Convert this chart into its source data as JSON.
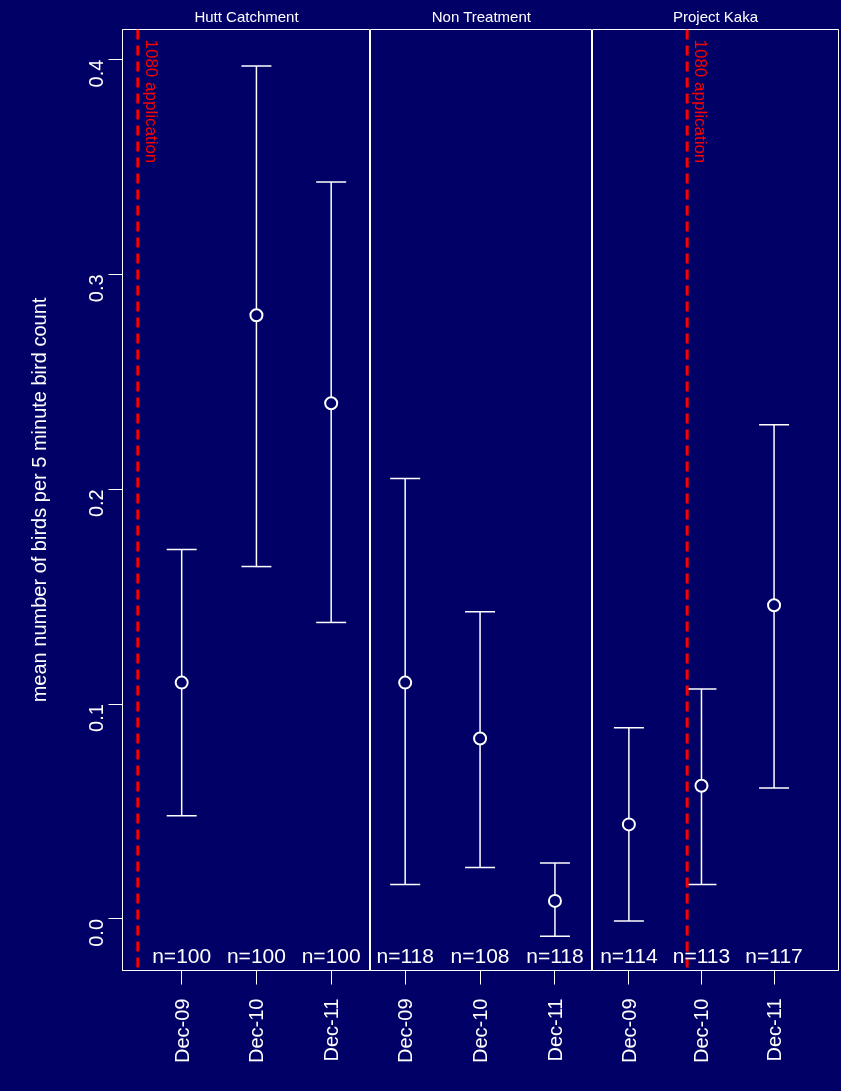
{
  "chart_data": [
    {
      "type": "scatter",
      "title": "Hutt Catchment",
      "ylabel": "mean number of birds per 5 minute bird count",
      "color": "#ffffff",
      "marker": "circle",
      "x": [
        "2009-12",
        "2010-12",
        "2011-12"
      ],
      "values": [
        0.11,
        0.281,
        0.24
      ],
      "errors": [
        [
          0.048,
          0.172
        ],
        [
          0.164,
          0.397
        ],
        [
          0.138,
          0.343
        ]
      ],
      "xlim": [
        "2009-02-15",
        "2012-06-10"
      ],
      "xticks": [
        {
          "value": "2009-12",
          "label": "Dec-09"
        },
        {
          "value": "2010-12",
          "label": "Dec-10"
        },
        {
          "value": "2011-12",
          "label": "Dec-11"
        }
      ],
      "ylim": [
        -0.024,
        0.414
      ],
      "yticks": [
        {
          "value": 0,
          "label": "0.0"
        },
        0.1,
        0.2,
        0.3,
        0.4
      ],
      "ref_lines": [
        {
          "axis": "x",
          "value": "2009-05-01",
          "label": "1080 application",
          "color": "#ff0000",
          "line_style": "dashed"
        }
      ],
      "annotations": [
        "n=100",
        "n=100",
        "n=100"
      ]
    },
    {
      "type": "scatter",
      "title": "Non Treatment",
      "color": "#ffffff",
      "marker": "circle",
      "tick_labels": "x",
      "x": [
        "2009-12",
        "2010-12",
        "2011-12"
      ],
      "values": [
        0.11,
        0.084,
        0.0084
      ],
      "errors": [
        [
          0.016,
          0.205
        ],
        [
          0.024,
          0.143
        ],
        [
          -0.008,
          0.026
        ]
      ],
      "xlim": [
        "2009-06-15",
        "2012-06-01"
      ],
      "xticks": [
        {
          "value": "2009-12",
          "label": "Dec-09"
        },
        {
          "value": "2010-12",
          "label": "Dec-10"
        },
        {
          "value": "2011-12",
          "label": "Dec-11"
        }
      ],
      "ylim": [
        -0.024,
        0.414
      ],
      "annotations": [
        "n=118",
        "n=108",
        "n=118"
      ]
    },
    {
      "type": "scatter",
      "title": "Project Kaka",
      "color": "#ffffff",
      "marker": "circle",
      "tick_labels": "x",
      "x": [
        "2009-12",
        "2010-12",
        "2011-12"
      ],
      "values": [
        0.044,
        0.062,
        0.146
      ],
      "errors": [
        [
          -0.001,
          0.089
        ],
        [
          0.016,
          0.107
        ],
        [
          0.061,
          0.23
        ]
      ],
      "xlim": [
        "2009-06-01",
        "2012-10-20"
      ],
      "xticks": [
        {
          "value": "2009-12",
          "label": "Dec-09"
        },
        {
          "value": "2010-12",
          "label": "Dec-10"
        },
        {
          "value": "2011-12",
          "label": "Dec-11"
        }
      ],
      "ylim": [
        -0.024,
        0.414
      ],
      "ref_lines": [
        {
          "axis": "x",
          "value": "2010-09-20",
          "label": "1080 application",
          "color": "#ff0000",
          "line_style": "dashed"
        }
      ],
      "annotations": [
        "n=114",
        "n=113",
        "n=117"
      ]
    }
  ]
}
